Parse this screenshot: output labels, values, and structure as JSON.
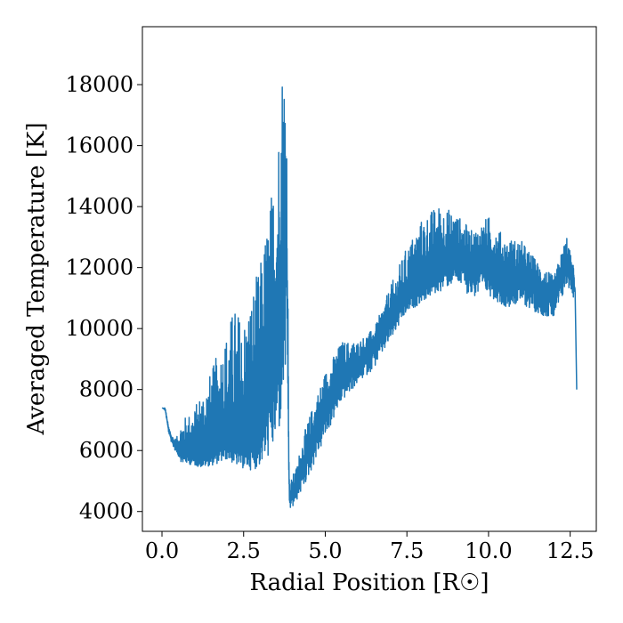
{
  "chart_data": {
    "type": "line",
    "title": "",
    "xlabel": "Radial Position [R☉]",
    "ylabel": "Averaged Temperature [K]",
    "xlim": [
      -0.6,
      13.3
    ],
    "ylim": [
      3350,
      19900
    ],
    "xticks": [
      0.0,
      2.5,
      5.0,
      7.5,
      10.0,
      12.5
    ],
    "xtick_labels": [
      "0.0",
      "2.5",
      "5.0",
      "7.5",
      "10.0",
      "12.5"
    ],
    "yticks": [
      4000,
      6000,
      8000,
      10000,
      12000,
      14000,
      16000,
      18000
    ],
    "ytick_labels": [
      "4000",
      "6000",
      "8000",
      "10000",
      "12000",
      "14000",
      "16000",
      "18000"
    ],
    "grid": false,
    "series": [
      {
        "color": "#1f77b4",
        "x": [
          0.0,
          0.1,
          0.2,
          0.3,
          0.4,
          0.5,
          0.6,
          0.8,
          1.0,
          1.2,
          1.5,
          1.8,
          2.0,
          2.2,
          2.5,
          2.8,
          3.0,
          3.2,
          3.4,
          3.55,
          3.65,
          3.72,
          3.78,
          3.82,
          3.85,
          3.87,
          3.89,
          3.91,
          3.95,
          4.0,
          4.1,
          4.3,
          4.6,
          5.0,
          5.5,
          6.0,
          6.5,
          7.0,
          7.5,
          8.0,
          8.5,
          9.0,
          9.5,
          10.0,
          10.5,
          11.0,
          11.5,
          12.0,
          12.2,
          12.4,
          12.55,
          12.6,
          12.65,
          12.7
        ],
        "mean": [
          7400,
          7350,
          6700,
          6350,
          6150,
          6100,
          6000,
          5900,
          5850,
          5800,
          5900,
          6150,
          6300,
          6150,
          6050,
          6300,
          6700,
          7500,
          8600,
          9800,
          11000,
          12500,
          13500,
          12500,
          9500,
          7000,
          5200,
          4400,
          4500,
          4600,
          4800,
          5400,
          6300,
          7400,
          8300,
          8800,
          9500,
          10300,
          11100,
          11600,
          12000,
          12400,
          12100,
          12100,
          11600,
          11700,
          11300,
          11000,
          11600,
          12200,
          11700,
          11500,
          11300,
          8000
        ],
        "low": [
          7400,
          7300,
          6600,
          6200,
          6000,
          5800,
          5600,
          5550,
          5500,
          5450,
          5500,
          5600,
          5700,
          5550,
          5400,
          5350,
          5500,
          5700,
          5900,
          6300,
          6700,
          7200,
          8000,
          8200,
          8200,
          6200,
          4600,
          4050,
          4100,
          4100,
          4300,
          4700,
          5400,
          6400,
          7600,
          8200,
          8700,
          9600,
          10500,
          10900,
          11200,
          11500,
          11000,
          11100,
          10700,
          10800,
          10500,
          10300,
          10800,
          11400,
          11200,
          11000,
          10800,
          7900
        ],
        "high": [
          7400,
          7400,
          6800,
          6500,
          6400,
          6500,
          7000,
          7200,
          7400,
          8000,
          8600,
          9500,
          10000,
          10800,
          10400,
          11500,
          12100,
          13500,
          14900,
          16200,
          18900,
          19100,
          18300,
          17200,
          13000,
          9000,
          6000,
          4800,
          5000,
          5200,
          5400,
          6400,
          7400,
          8600,
          9600,
          9600,
          10000,
          11400,
          12700,
          13700,
          14100,
          13800,
          13200,
          13700,
          13000,
          12900,
          12200,
          11700,
          12400,
          13100,
          12200,
          12100,
          11900,
          8100
        ]
      }
    ]
  }
}
